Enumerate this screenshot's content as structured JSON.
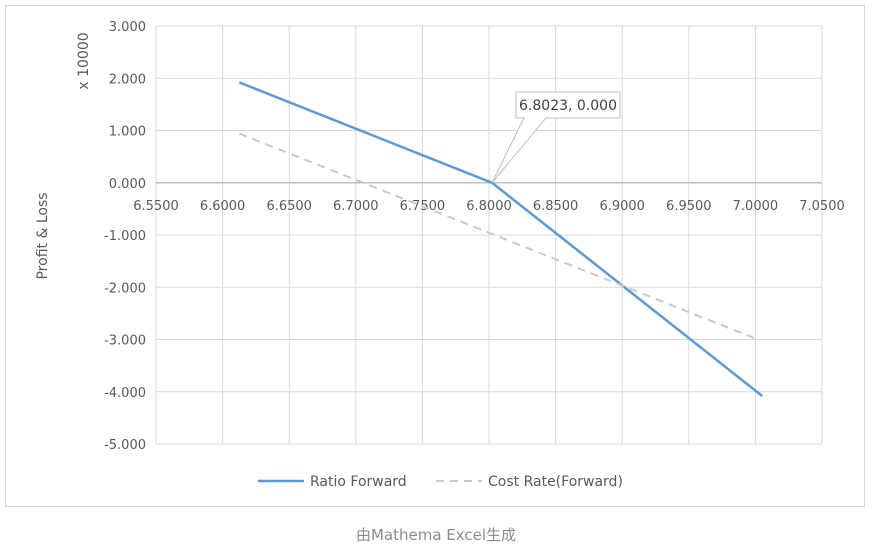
{
  "chart_data": {
    "type": "line",
    "title": "",
    "xlabel": "",
    "ylabel": "Profit & Loss",
    "yunit_label": "x 10000",
    "xlim": [
      6.55,
      7.05
    ],
    "ylim": [
      -5,
      3
    ],
    "x_ticks": [
      "6.5500",
      "6.6000",
      "6.6500",
      "6.7000",
      "6.7500",
      "6.8000",
      "6.8500",
      "6.9000",
      "6.9500",
      "7.0000",
      "7.0500"
    ],
    "y_ticks": [
      "3.000",
      "2.000",
      "1.000",
      "0.000",
      "-1.000",
      "-2.000",
      "-3.000",
      "-4.000",
      "-5.000"
    ],
    "grid": true,
    "legend_position": "bottom",
    "series": [
      {
        "name": "Ratio Forward",
        "color": "#5b9bd5",
        "style": "solid",
        "x": [
          6.6125,
          6.8023,
          7.005
        ],
        "y": [
          1.92,
          0.0,
          -4.08
        ]
      },
      {
        "name": "Cost Rate(Forward)",
        "color": "#c9c9c9",
        "style": "dashed",
        "x": [
          6.6125,
          7.0
        ],
        "y": [
          0.94,
          -2.98
        ]
      }
    ],
    "annotations": [
      {
        "text": "6.8023, 0.000",
        "x": 6.8023,
        "y": 0.0
      }
    ]
  },
  "caption": "由Mathema Excel生成"
}
